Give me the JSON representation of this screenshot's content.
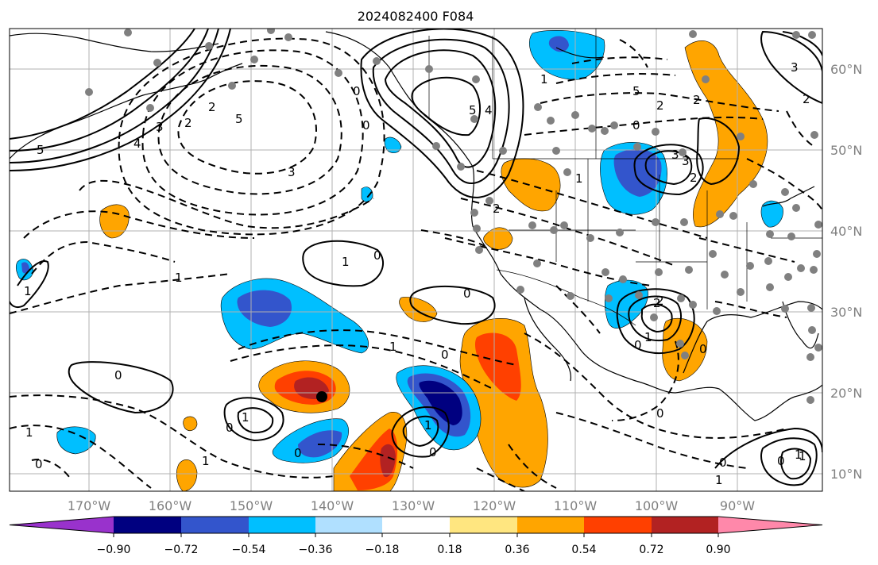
{
  "map": {
    "title": "2024082400 F084",
    "lat_labels": [
      "60°N",
      "50°N",
      "40°N",
      "30°N",
      "20°N",
      "10°N"
    ],
    "lon_labels": [
      "170°W",
      "160°W",
      "150°W",
      "140°W",
      "130°W",
      "120°W",
      "110°W",
      "100°W",
      "90°W"
    ]
  },
  "colorbar": {
    "colors": [
      "#9932cc",
      "#000080",
      "#3355cc",
      "#00bfff",
      "#b0e0ff",
      "#ffffff",
      "#ffe680",
      "#ffa500",
      "#ff4000",
      "#b22222",
      "#ff88aa"
    ],
    "tick_labels": [
      "−0.90",
      "−0.72",
      "−0.54",
      "−0.36",
      "−0.18",
      "0.18",
      "0.36",
      "0.54",
      "0.72",
      "0.90"
    ]
  },
  "contour_labels": [
    "5",
    "4",
    "3",
    "2",
    "5",
    "3",
    "1",
    "0",
    "5",
    "4",
    "0",
    "1",
    "2",
    "0",
    "2",
    "3",
    "2",
    "1",
    "2",
    "1",
    "2",
    "0",
    "0",
    "1",
    "0",
    "1",
    "0",
    "0",
    "0",
    "1",
    "0",
    "1",
    "0",
    "1",
    "0",
    "1",
    "2",
    "0",
    "0",
    "0",
    "1",
    "1",
    "1",
    "0",
    "3",
    "2",
    "5",
    "3",
    "1",
    "2"
  ]
}
